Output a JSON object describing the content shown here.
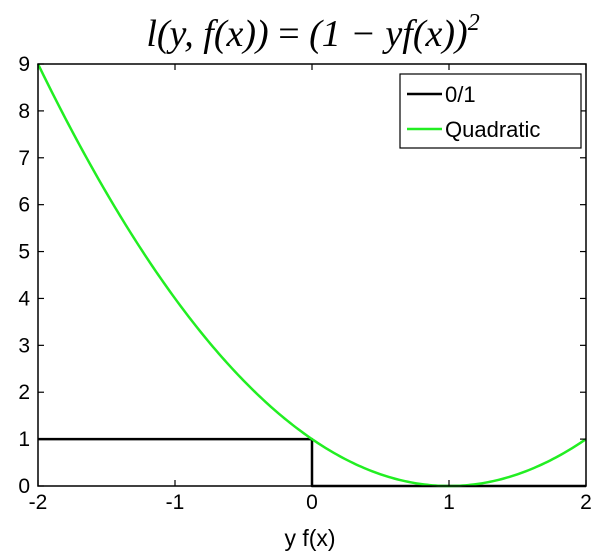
{
  "chart_data": {
    "type": "line",
    "title": "l(y, f(x)) = (1 − yf(x))²",
    "title_parts": {
      "lhs": "l(y, f(x))",
      "eq": " = ",
      "rhs": "(1 − yf(x))",
      "exp": "2"
    },
    "xlabel": "y f(x)",
    "ylabel": "",
    "xlim": [
      -2,
      2
    ],
    "ylim": [
      0,
      9
    ],
    "xticks": [
      -2,
      -1,
      0,
      1,
      2
    ],
    "xtick_labels": [
      "-2",
      "-1",
      "0",
      "1",
      "2"
    ],
    "yticks": [
      0,
      1,
      2,
      3,
      4,
      5,
      6,
      7,
      8,
      9
    ],
    "ytick_labels": [
      "0",
      "1",
      "2",
      "3",
      "4",
      "5",
      "6",
      "7",
      "8",
      "9"
    ],
    "grid": false,
    "legend_position": "top-right",
    "series": [
      {
        "name": "0/1",
        "color": "#000000",
        "x": [
          -2,
          0,
          0,
          2
        ],
        "y": [
          1,
          1,
          0,
          0
        ]
      },
      {
        "name": "Quadratic",
        "color": "#22ee22",
        "x": [
          -2,
          -1.75,
          -1.5,
          -1.25,
          -1,
          -0.75,
          -0.5,
          -0.25,
          0,
          0.25,
          0.5,
          0.75,
          1,
          1.25,
          1.5,
          1.75,
          2
        ],
        "y": [
          9,
          7.5625,
          6.25,
          5.0625,
          4,
          3.0625,
          2.25,
          1.5625,
          1,
          0.5625,
          0.25,
          0.0625,
          0,
          0.0625,
          0.25,
          0.5625,
          1
        ]
      }
    ]
  }
}
